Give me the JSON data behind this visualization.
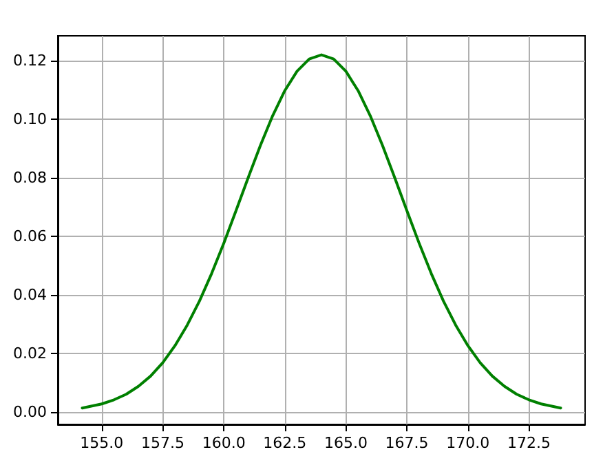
{
  "chart_data": {
    "type": "line",
    "x": [
      154.2,
      155,
      155.5,
      156,
      156.5,
      157,
      157.5,
      158,
      158.5,
      159,
      159.5,
      160,
      160.5,
      161,
      161.5,
      162,
      162.5,
      163,
      163.5,
      164,
      164.5,
      165,
      165.5,
      166,
      166.5,
      167,
      167.5,
      168,
      168.5,
      169,
      169.5,
      170,
      170.5,
      171,
      171.5,
      172,
      172.5,
      173,
      173.8
    ],
    "series": [
      {
        "color": "#008000",
        "values": [
          0.0014,
          0.0028,
          0.0042,
          0.0061,
          0.0088,
          0.0123,
          0.0169,
          0.0227,
          0.0297,
          0.0379,
          0.0473,
          0.0577,
          0.0688,
          0.0801,
          0.0911,
          0.1012,
          0.1098,
          0.1164,
          0.1206,
          0.122,
          0.1206,
          0.1164,
          0.1098,
          0.1012,
          0.0911,
          0.0801,
          0.0688,
          0.0577,
          0.0473,
          0.0379,
          0.0297,
          0.0227,
          0.0169,
          0.0123,
          0.0088,
          0.0061,
          0.0042,
          0.0028,
          0.0014
        ]
      }
    ],
    "xlim": [
      153.2,
      174.8
    ],
    "xticks": [
      {
        "value": 155,
        "label": "155.0"
      },
      {
        "value": 157.5,
        "label": "157.5"
      },
      {
        "value": 160,
        "label": "160.0"
      },
      {
        "value": 162.5,
        "label": "162.5"
      },
      {
        "value": 165,
        "label": "165.0"
      },
      {
        "value": 167.5,
        "label": "167.5"
      },
      {
        "value": 170,
        "label": "170.0"
      },
      {
        "value": 172.5,
        "label": "172.5"
      }
    ],
    "ylim": [
      -0.0042,
      0.1285
    ],
    "yticks": [
      {
        "value": 0,
        "label": "0.00"
      },
      {
        "value": 0.02,
        "label": "0.02"
      },
      {
        "value": 0.04,
        "label": "0.04"
      },
      {
        "value": 0.06,
        "label": "0.06"
      },
      {
        "value": 0.08,
        "label": "0.08"
      },
      {
        "value": 0.1,
        "label": "0.10"
      },
      {
        "value": 0.12,
        "label": "0.12"
      }
    ],
    "grid": true,
    "marker": "none",
    "line_style": "solid"
  }
}
